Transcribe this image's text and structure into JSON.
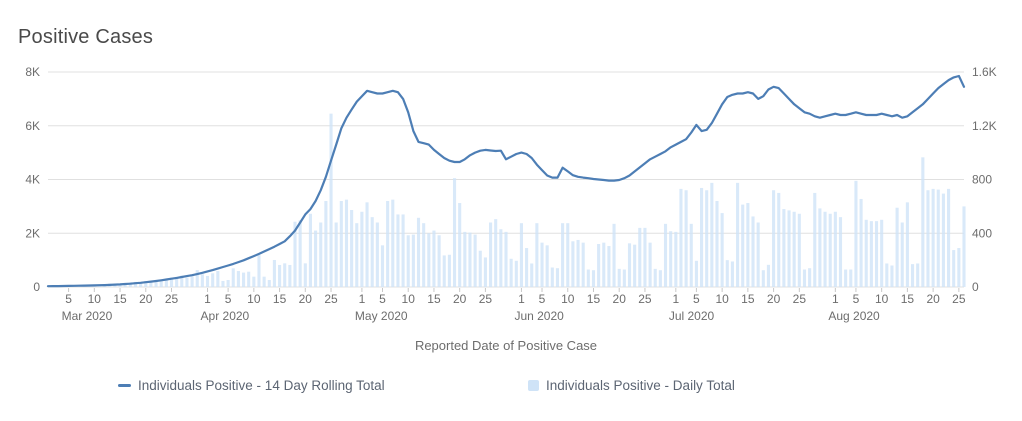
{
  "title": "Positive Cases",
  "xaxis_title": "Reported Date of Positive Case",
  "legend": {
    "rolling_label": "Individuals Positive - 14 Day Rolling Total",
    "daily_label": "Individuals Positive - Daily Total"
  },
  "colors": {
    "line": "#4d7eb5",
    "bar": "#cfe3f7",
    "grid": "#e0e0e0",
    "tick": "#c8c8c8",
    "axis_text": "#6d6d6d",
    "title_text": "#4a4a4a",
    "legend_text": "#5c6573"
  },
  "chart_data": {
    "type": "line+bar combo",
    "title": "Positive Cases",
    "xlabel": "Reported Date of Positive Case",
    "x_start": "2020-03-01",
    "x_end": "2020-08-26",
    "grid": true,
    "legend_position": "bottom",
    "left_axis": {
      "title": "",
      "max": 8000,
      "ticks": [
        "0",
        "2K",
        "4K",
        "6K",
        "8K"
      ]
    },
    "right_axis": {
      "title": "",
      "max": 1600,
      "ticks": [
        "0",
        "400",
        "800",
        "1.2K",
        "1.6K"
      ]
    },
    "x_ticks": [
      {
        "d": 4,
        "label": "5"
      },
      {
        "d": 9,
        "label": "10"
      },
      {
        "d": 14,
        "label": "15"
      },
      {
        "d": 19,
        "label": "20"
      },
      {
        "d": 24,
        "label": "25"
      },
      {
        "d": 31,
        "label": "1"
      },
      {
        "d": 35,
        "label": "5"
      },
      {
        "d": 40,
        "label": "10"
      },
      {
        "d": 45,
        "label": "15"
      },
      {
        "d": 50,
        "label": "20"
      },
      {
        "d": 55,
        "label": "25"
      },
      {
        "d": 61,
        "label": "1"
      },
      {
        "d": 65,
        "label": "5"
      },
      {
        "d": 70,
        "label": "10"
      },
      {
        "d": 75,
        "label": "15"
      },
      {
        "d": 80,
        "label": "20"
      },
      {
        "d": 85,
        "label": "25"
      },
      {
        "d": 92,
        "label": "1"
      },
      {
        "d": 96,
        "label": "5"
      },
      {
        "d": 101,
        "label": "10"
      },
      {
        "d": 106,
        "label": "15"
      },
      {
        "d": 111,
        "label": "20"
      },
      {
        "d": 116,
        "label": "25"
      },
      {
        "d": 122,
        "label": "1"
      },
      {
        "d": 126,
        "label": "5"
      },
      {
        "d": 131,
        "label": "10"
      },
      {
        "d": 136,
        "label": "15"
      },
      {
        "d": 141,
        "label": "20"
      },
      {
        "d": 146,
        "label": "25"
      },
      {
        "d": 153,
        "label": "1"
      },
      {
        "d": 157,
        "label": "5"
      },
      {
        "d": 162,
        "label": "10"
      },
      {
        "d": 167,
        "label": "15"
      },
      {
        "d": 172,
        "label": "20"
      },
      {
        "d": 177,
        "label": "25"
      }
    ],
    "month_labels": [
      {
        "d": 4,
        "label": "Mar 2020"
      },
      {
        "d": 31,
        "label": "Apr 2020"
      },
      {
        "d": 61,
        "label": "May 2020"
      },
      {
        "d": 92,
        "label": "Jun 2020"
      },
      {
        "d": 122,
        "label": "Jul 2020"
      },
      {
        "d": 153,
        "label": "Aug 2020"
      }
    ],
    "series": [
      {
        "name": "Individuals Positive - 14 Day Rolling Total",
        "type": "line",
        "axis": "left",
        "values": [
          30,
          32,
          34,
          36,
          40,
          44,
          48,
          52,
          56,
          60,
          66,
          72,
          80,
          88,
          98,
          110,
          124,
          140,
          158,
          178,
          200,
          224,
          250,
          278,
          308,
          340,
          372,
          406,
          440,
          480,
          530,
          580,
          630,
          685,
          745,
          800,
          860,
          925,
          995,
          1070,
          1150,
          1230,
          1320,
          1410,
          1500,
          1600,
          1700,
          1890,
          2100,
          2400,
          2700,
          2900,
          3200,
          3600,
          4100,
          4700,
          5300,
          5900,
          6300,
          6600,
          6900,
          7100,
          7300,
          7250,
          7200,
          7200,
          7250,
          7300,
          7250,
          7000,
          6500,
          5800,
          5400,
          5350,
          5300,
          5100,
          4950,
          4800,
          4700,
          4650,
          4650,
          4750,
          4900,
          5000,
          5070,
          5100,
          5080,
          5060,
          5070,
          4750,
          4850,
          4950,
          5000,
          4950,
          4800,
          4550,
          4350,
          4150,
          4070,
          4070,
          4440,
          4300,
          4160,
          4100,
          4070,
          4050,
          4020,
          4000,
          3980,
          3960,
          3960,
          3980,
          4050,
          4150,
          4300,
          4450,
          4600,
          4750,
          4850,
          4950,
          5050,
          5200,
          5300,
          5400,
          5500,
          5750,
          6030,
          5800,
          5850,
          6100,
          6450,
          6800,
          7070,
          7150,
          7200,
          7200,
          7250,
          7200,
          7000,
          7100,
          7350,
          7450,
          7400,
          7200,
          7000,
          6800,
          6650,
          6500,
          6450,
          6350,
          6300,
          6350,
          6400,
          6450,
          6400,
          6400,
          6450,
          6500,
          6450,
          6400,
          6400,
          6400,
          6450,
          6400,
          6350,
          6400,
          6300,
          6350,
          6500,
          6650,
          6800,
          7000,
          7200,
          7400,
          7550,
          7700,
          7800,
          7850,
          7450
        ]
      },
      {
        "name": "Individuals Positive - Daily Total",
        "type": "bar",
        "axis": "right",
        "values": [
          2,
          3,
          4,
          5,
          6,
          8,
          6,
          8,
          12,
          15,
          18,
          22,
          25,
          20,
          22,
          30,
          35,
          38,
          35,
          45,
          40,
          42,
          55,
          60,
          70,
          75,
          85,
          70,
          80,
          126,
          95,
          82,
          102,
          119,
          45,
          52,
          139,
          119,
          107,
          114,
          77,
          238,
          77,
          52,
          201,
          164,
          176,
          164,
          486,
          497,
          176,
          545,
          420,
          480,
          640,
          1290,
          480,
          640,
          650,
          573,
          475,
          560,
          630,
          520,
          480,
          310,
          640,
          650,
          540,
          540,
          385,
          390,
          515,
          475,
          400,
          420,
          385,
          235,
          240,
          810,
          625,
          410,
          405,
          390,
          270,
          220,
          480,
          505,
          430,
          410,
          210,
          195,
          475,
          290,
          175,
          475,
          330,
          310,
          145,
          140,
          475,
          475,
          340,
          350,
          330,
          130,
          125,
          320,
          330,
          305,
          470,
          135,
          130,
          325,
          315,
          440,
          440,
          330,
          135,
          125,
          470,
          415,
          410,
          730,
          720,
          470,
          195,
          737,
          720,
          775,
          640,
          550,
          200,
          190,
          775,
          613,
          625,
          525,
          480,
          125,
          165,
          720,
          700,
          580,
          570,
          560,
          545,
          130,
          140,
          700,
          585,
          560,
          545,
          560,
          520,
          130,
          130,
          790,
          655,
          500,
          490,
          490,
          500,
          175,
          160,
          590,
          480,
          630,
          170,
          175,
          965,
          720,
          730,
          725,
          695,
          730,
          275,
          290,
          600
        ]
      }
    ]
  }
}
